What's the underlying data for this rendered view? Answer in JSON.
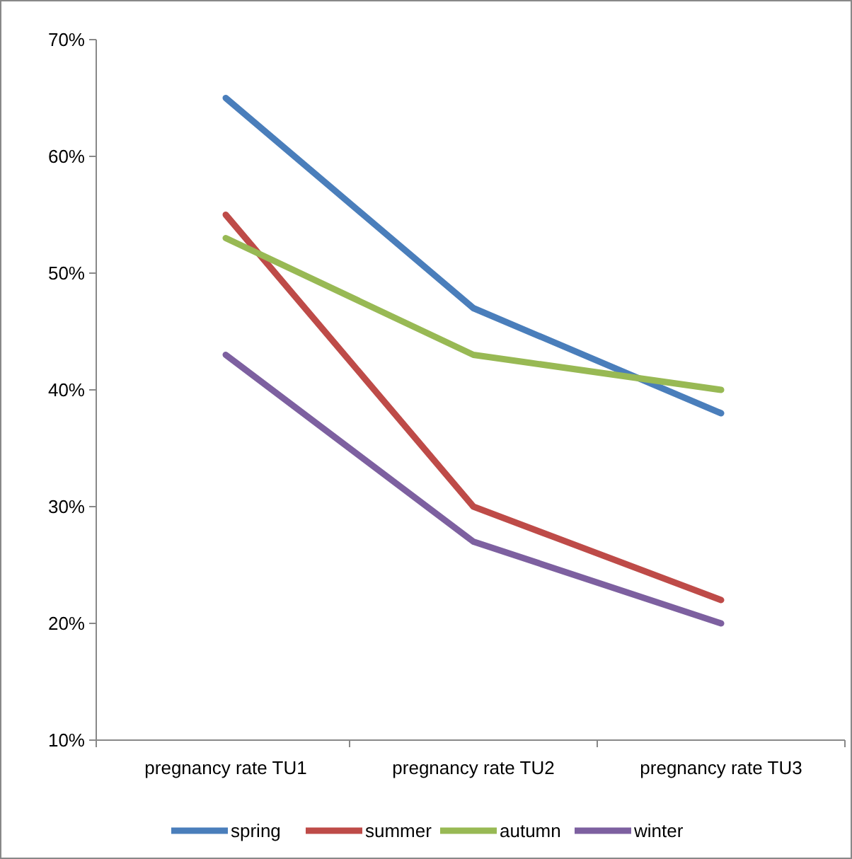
{
  "chart_data": {
    "type": "line",
    "categories": [
      "pregnancy rate TU1",
      "pregnancy rate TU2",
      "pregnancy rate TU3"
    ],
    "series": [
      {
        "name": "spring",
        "color": "#4a7ebb",
        "values": [
          65,
          47,
          38
        ]
      },
      {
        "name": "summer",
        "color": "#be4b48",
        "values": [
          55,
          30,
          22
        ]
      },
      {
        "name": "autumn",
        "color": "#98b954",
        "values": [
          53,
          43,
          40
        ]
      },
      {
        "name": "winter",
        "color": "#7d60a0",
        "values": [
          43,
          27,
          20
        ]
      }
    ],
    "ylim": [
      10,
      70
    ],
    "yticks": [
      {
        "value": 10,
        "label": "10%"
      },
      {
        "value": 20,
        "label": "20%"
      },
      {
        "value": 30,
        "label": "30%"
      },
      {
        "value": 40,
        "label": "40%"
      },
      {
        "value": 50,
        "label": "50%"
      },
      {
        "value": 60,
        "label": "60%"
      },
      {
        "value": 70,
        "label": "70%"
      }
    ],
    "grid": false,
    "legend": "bottom",
    "marker": "none",
    "line_style": "solid"
  }
}
